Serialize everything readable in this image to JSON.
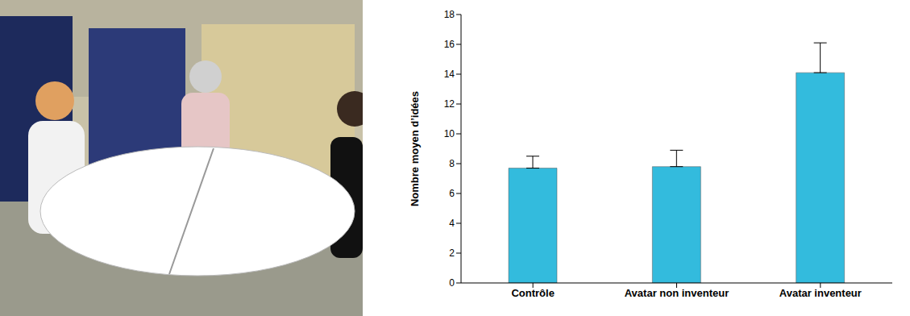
{
  "chart_data": {
    "type": "bar",
    "ylabel": "Nombre moyen d’idées",
    "categories": [
      "Contrôle",
      "Avatar non inventeur",
      "Avatar inventeur"
    ],
    "values": [
      7.7,
      7.8,
      14.1
    ],
    "errors": [
      0.8,
      1.1,
      2.0
    ],
    "color": "#33bbdd",
    "ylim": [
      0,
      18
    ],
    "yticks": [
      0,
      2,
      4,
      6,
      8,
      10,
      12,
      14,
      16,
      18
    ],
    "grid": false
  }
}
